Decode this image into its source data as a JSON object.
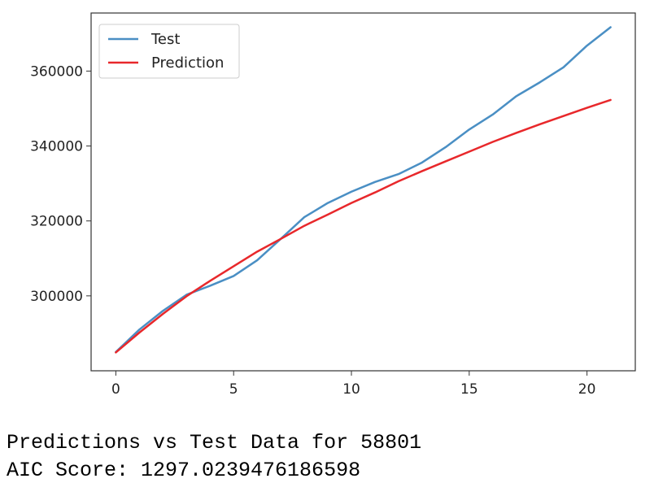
{
  "chart_data": {
    "type": "line",
    "x": [
      0,
      1,
      2,
      3,
      4,
      5,
      6,
      7,
      8,
      9,
      10,
      11,
      12,
      13,
      14,
      15,
      16,
      17,
      18,
      19,
      20,
      21
    ],
    "series": [
      {
        "name": "Test",
        "color": "#4a8fc4",
        "values": [
          285000,
          291000,
          296000,
          300300,
          302700,
          305300,
          309500,
          315200,
          321000,
          324800,
          327800,
          330400,
          332500,
          335600,
          339700,
          344400,
          348400,
          353300,
          357000,
          361000,
          366800,
          371700
        ]
      },
      {
        "name": "Prediction",
        "color": "#e8282b",
        "values": [
          284900,
          290200,
          295200,
          299900,
          304000,
          307900,
          311800,
          315200,
          318700,
          321700,
          324800,
          327600,
          330600,
          333300,
          335900,
          338500,
          341100,
          343500,
          345800,
          348000,
          350200,
          352300
        ]
      }
    ],
    "xlim": [
      -1.05,
      22.05
    ],
    "ylim": [
      280000,
      375500
    ],
    "xticks": [
      0,
      5,
      10,
      15,
      20
    ],
    "yticks": [
      300000,
      320000,
      340000,
      360000
    ],
    "legend": "top-left",
    "grid": false,
    "title": "",
    "xlabel": "",
    "ylabel": ""
  },
  "output": {
    "line1": "Predictions vs Test Data for 58801",
    "line2": "AIC Score: 1297.0239476186598"
  }
}
